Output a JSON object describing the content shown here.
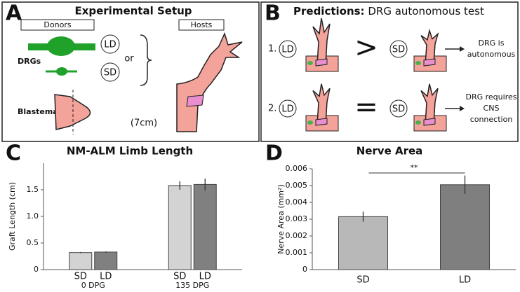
{
  "panels": {
    "a": {
      "letter": "A",
      "title": "Experimental Setup",
      "donors": "Donors",
      "hosts": "Hosts",
      "drgs": "DRGs",
      "blastemas": "Blastemas",
      "ld": "LD",
      "sd": "SD",
      "or": "or",
      "size": "(7cm)"
    },
    "b": {
      "letter": "B",
      "title_bold": "Predictions:",
      "title": "DRG autonomous test",
      "rows": [
        {
          "number": "1.",
          "left": "LD",
          "relation": ">",
          "right": "SD",
          "outcome": [
            "DRG is",
            "autonomous"
          ]
        },
        {
          "number": "2.",
          "left": "LD",
          "relation": "=",
          "right": "SD",
          "outcome": [
            "DRG requires",
            "CNS",
            "connection"
          ]
        }
      ]
    }
  },
  "chart_data": [
    {
      "type": "bar",
      "panel": "C",
      "title": "NM-ALM Limb Length",
      "ylabel": "Graft Length (cm)",
      "categories": [
        "0 DPG",
        "135 DPG"
      ],
      "series": [
        {
          "name": "SD",
          "color": "#d3d3d3",
          "values": [
            0.32,
            1.58
          ],
          "errors": [
            0.01,
            0.08
          ]
        },
        {
          "name": "LD",
          "color": "#808080",
          "values": [
            0.33,
            1.6
          ],
          "errors": [
            0.01,
            0.11
          ]
        }
      ],
      "ylim": [
        0,
        2
      ],
      "yticks": [
        0,
        0.5,
        {
          "value": 1,
          "label": "1.0"
        },
        1.5
      ]
    },
    {
      "type": "bar",
      "panel": "D",
      "title": "Nerve Area",
      "ylabel": "Nerve Area (mm²)",
      "categories": [
        "SD",
        "LD"
      ],
      "values": [
        0.00315,
        0.00505
      ],
      "errors": [
        0.0003,
        0.00055
      ],
      "colors": [
        "#b8b8b8",
        "#7f7f7f"
      ],
      "annotation": "**",
      "ylim": [
        0,
        0.006
      ],
      "yticks": [
        0,
        0.001,
        0.002,
        0.003,
        0.004,
        0.005,
        0.006
      ]
    }
  ]
}
